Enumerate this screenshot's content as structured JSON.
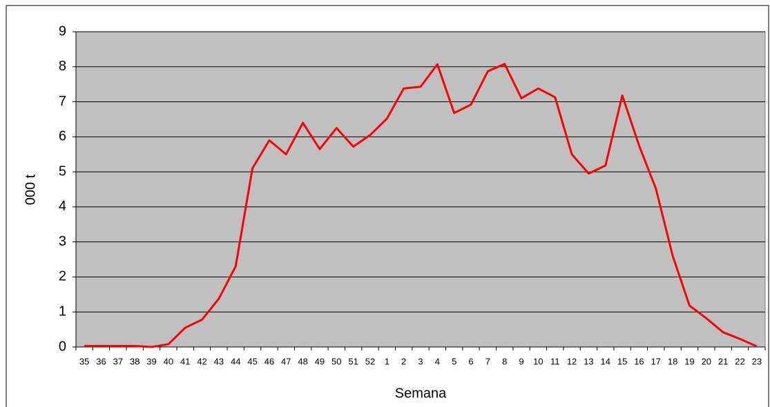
{
  "chart_data": {
    "type": "line",
    "x_label": "Semana",
    "y_label": "000 t",
    "categories": [
      "35",
      "36",
      "37",
      "38",
      "39",
      "40",
      "41",
      "42",
      "43",
      "44",
      "45",
      "46",
      "47",
      "48",
      "49",
      "50",
      "51",
      "52",
      "1",
      "2",
      "3",
      "4",
      "5",
      "6",
      "7",
      "8",
      "9",
      "10",
      "11",
      "12",
      "13",
      "14",
      "15",
      "16",
      "17",
      "18",
      "19",
      "20",
      "21",
      "22",
      "23"
    ],
    "values": [
      0.03,
      0.03,
      0.03,
      0.03,
      0.0,
      0.08,
      0.55,
      0.78,
      1.38,
      2.3,
      5.1,
      5.9,
      5.5,
      6.4,
      5.65,
      6.25,
      5.72,
      6.05,
      6.52,
      7.38,
      7.43,
      8.07,
      6.68,
      6.92,
      7.87,
      8.08,
      7.1,
      7.38,
      7.13,
      5.5,
      4.95,
      5.18,
      7.18,
      5.75,
      4.52,
      2.6,
      1.18,
      0.82,
      0.42,
      0.23,
      0.02
    ],
    "color": "#ff0000",
    "plot_background": "#c0c0c0",
    "ylim": [
      0,
      9
    ],
    "yticks": [
      0,
      1,
      2,
      3,
      4,
      5,
      6,
      7,
      8,
      9
    ],
    "grid": true
  }
}
